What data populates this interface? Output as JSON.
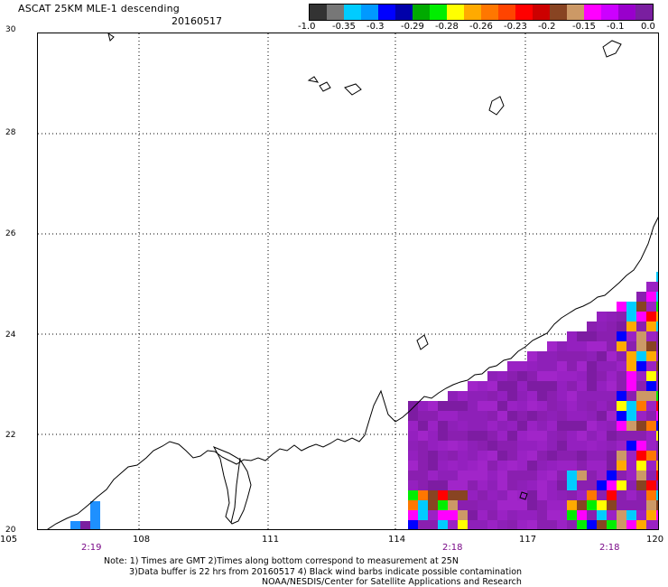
{
  "title": "ASCAT 25KM MLE-1 descending",
  "date": "20160517",
  "colorbar": {
    "colors": [
      "#333333",
      "#777777",
      "#00ccff",
      "#0099ff",
      "#0000ff",
      "#0000aa",
      "#00aa00",
      "#00ee00",
      "#ffff00",
      "#ffaa00",
      "#ff7700",
      "#ff4400",
      "#ff0000",
      "#cc0000",
      "#884422",
      "#cc9966",
      "#ff00ff",
      "#cc00ff",
      "#9900cc",
      "#7a1fa0"
    ],
    "labels": [
      "-1.0",
      "-0.35",
      "-0.3",
      "-0.29",
      "-0.28",
      "-0.26",
      "-0.23",
      "-0.2",
      "-0.15",
      "-0.1",
      "0.0"
    ]
  },
  "y_axis": [
    "30",
    "28",
    "26",
    "24",
    "22",
    "20"
  ],
  "x_axis": [
    "105",
    "108",
    "111",
    "114",
    "117",
    "120"
  ],
  "pass_times": [
    "2:19",
    "2:18",
    "2:18"
  ],
  "notes": {
    "line1": "Note: 1) Times are GMT 2)Times along bottom correspond to measurement at 25N",
    "line2": "3)Data buffer is 22 hrs from 20160517 4) Black wind barbs indicate possible contamination",
    "line3": "NOAA/NESDIS/Center for Satellite Applications and Research"
  }
}
